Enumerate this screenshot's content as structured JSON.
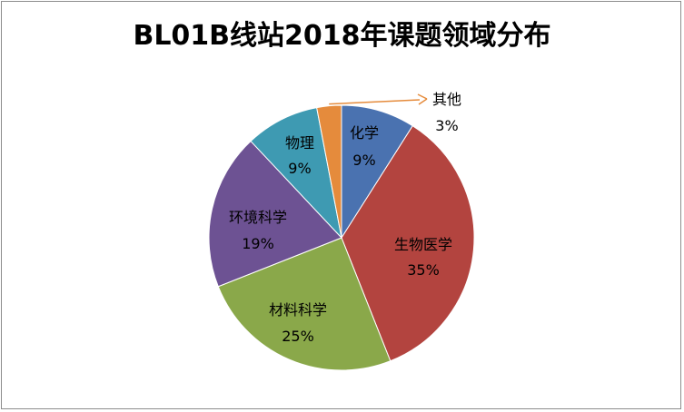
{
  "chart_data": {
    "type": "pie",
    "title": "BL01B线站2018年课题领域分布",
    "slices": [
      {
        "label": "化学",
        "percent_label": "9%",
        "value": 9,
        "color": "#4a72b0"
      },
      {
        "label": "生物医学",
        "percent_label": "35%",
        "value": 35,
        "color": "#b3443f"
      },
      {
        "label": "材料科学",
        "percent_label": "25%",
        "value": 25,
        "color": "#8aa84a"
      },
      {
        "label": "环境科学",
        "percent_label": "19%",
        "value": 19,
        "color": "#6d5293"
      },
      {
        "label": "物理",
        "percent_label": "9%",
        "value": 9,
        "color": "#3e9ab2"
      },
      {
        "label": "其他",
        "percent_label": "3%",
        "value": 3,
        "color": "#e58b3c"
      }
    ],
    "start_angle_deg": 0,
    "direction": "clockwise",
    "legend": "none",
    "leader_line_color": "#e58b3c"
  }
}
